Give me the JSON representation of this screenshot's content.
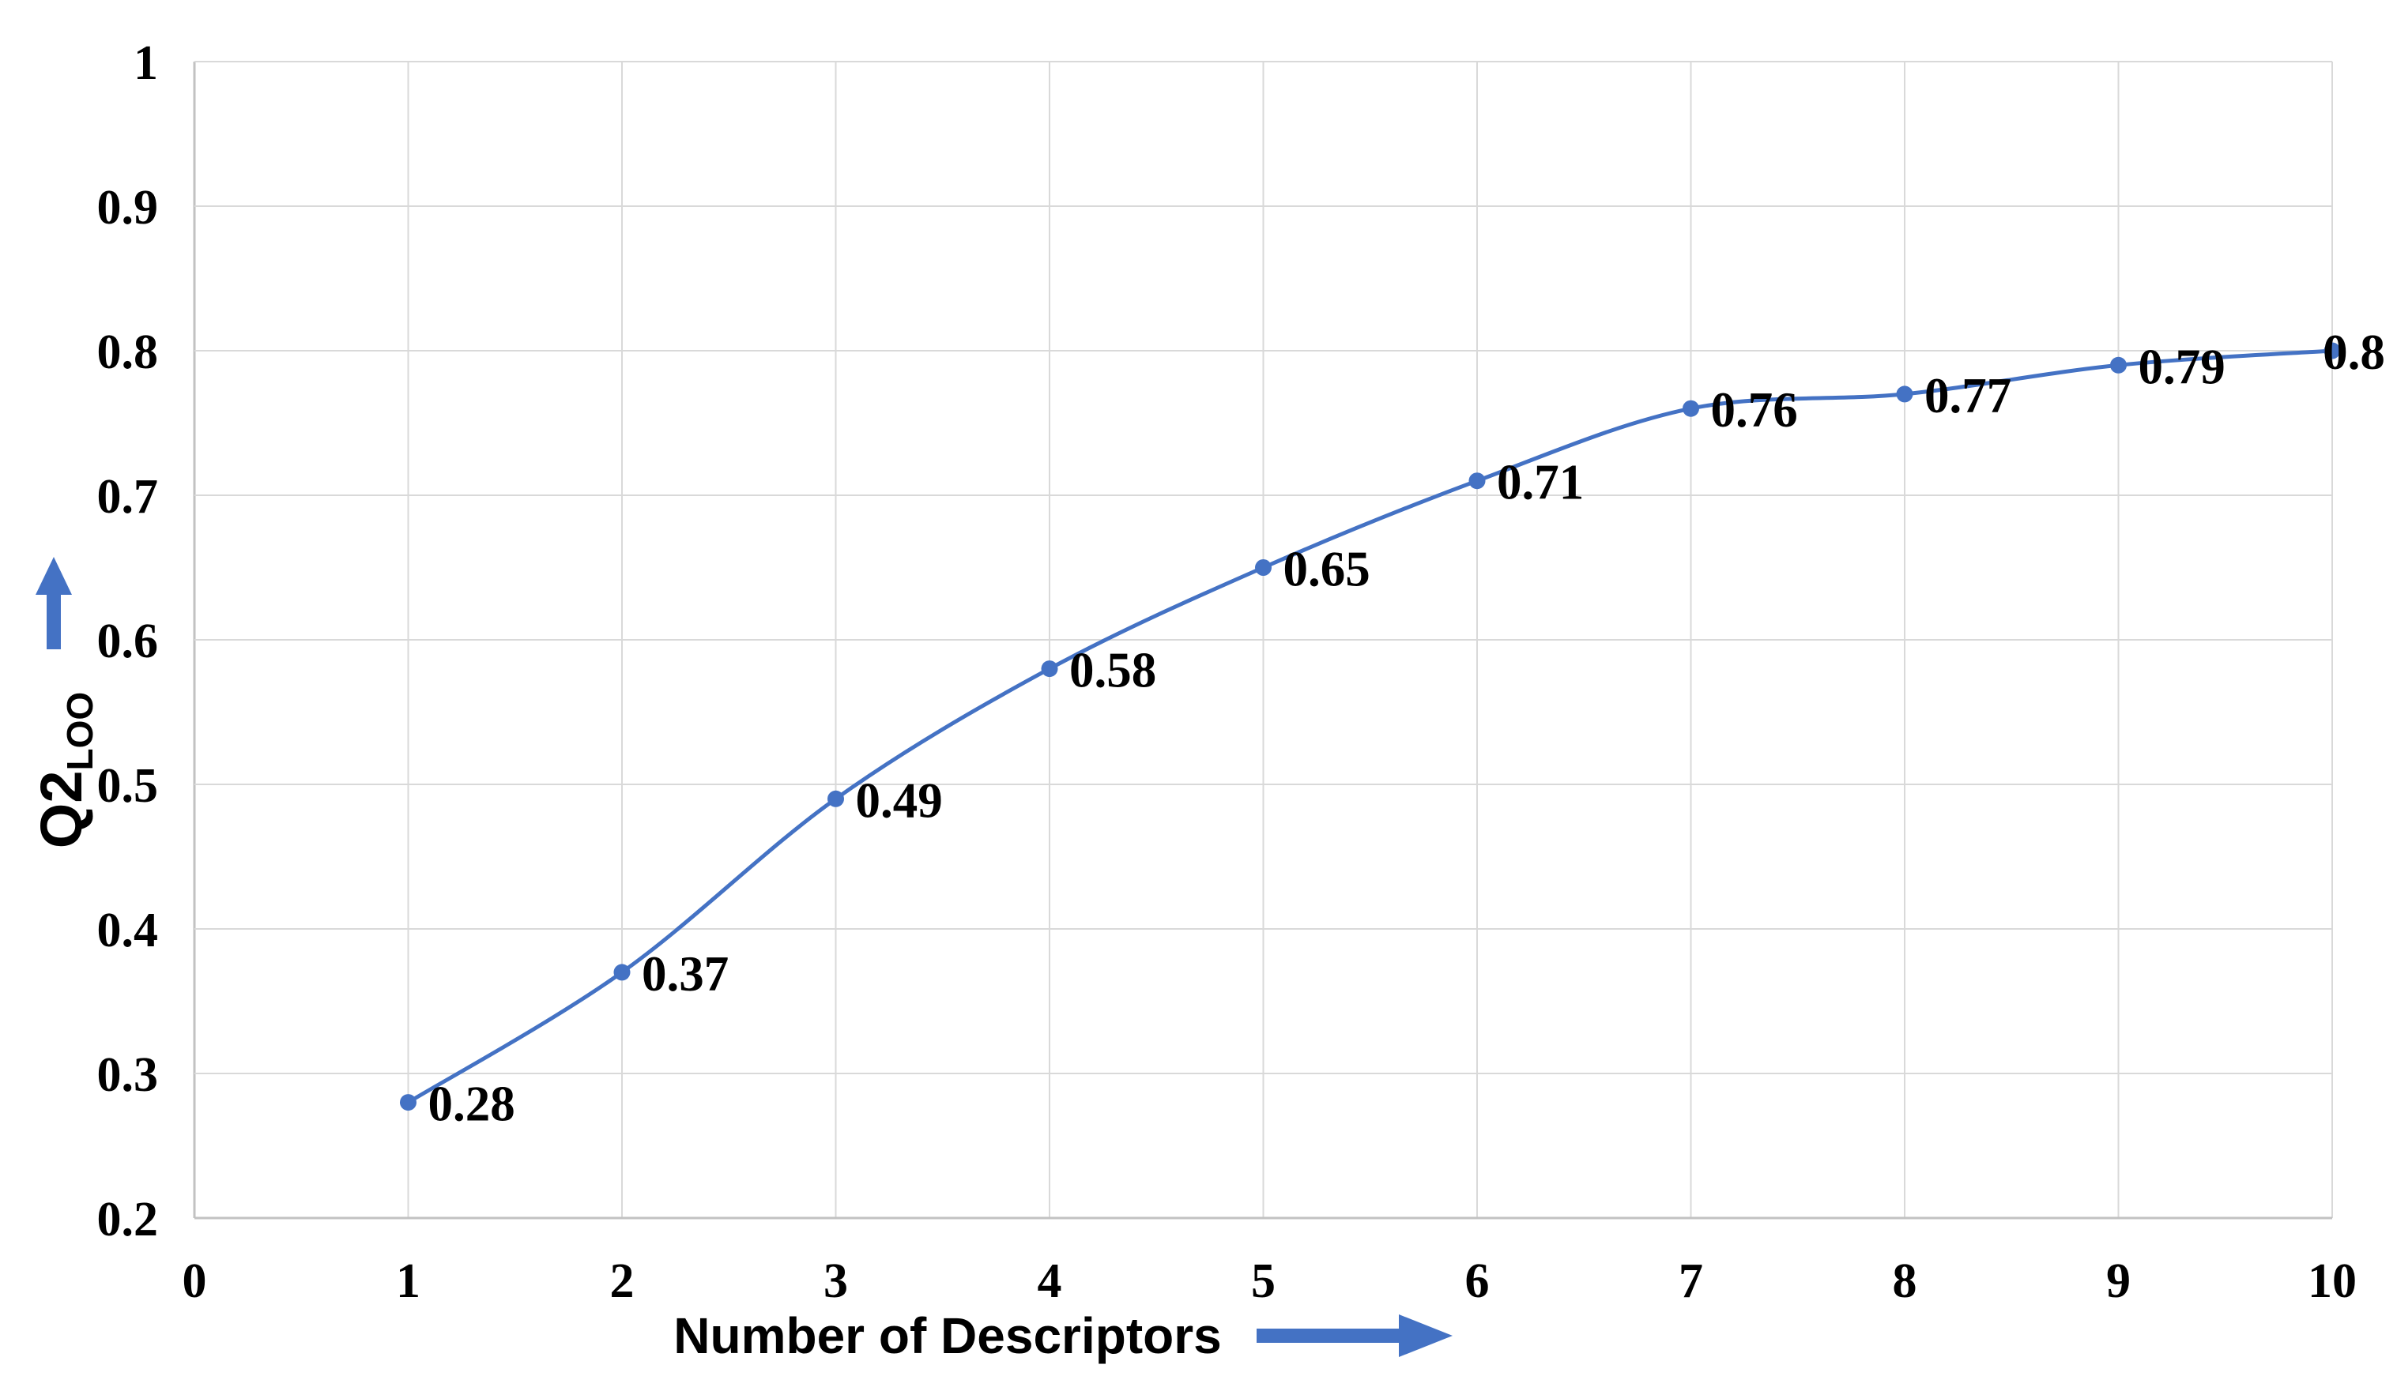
{
  "page": {
    "background": "#ffffff"
  },
  "chart_data": {
    "type": "line",
    "title": "",
    "x": [
      1,
      2,
      3,
      4,
      5,
      6,
      7,
      8,
      9,
      10
    ],
    "series": [
      {
        "name": "Q2LOO",
        "values": [
          0.28,
          0.37,
          0.49,
          0.58,
          0.65,
          0.71,
          0.76,
          0.77,
          0.79,
          0.8
        ],
        "point_labels": [
          "0.28",
          "0.37",
          "0.49",
          "0.58",
          "0.65",
          "0.71",
          "0.76",
          "0.77",
          "0.79",
          "0.8"
        ]
      }
    ],
    "xlabel": "Number of Descriptors",
    "ylabel": {
      "base": "Q2",
      "sub": "LOO"
    },
    "xlim": [
      0,
      10
    ],
    "ylim": [
      0.2,
      1.0
    ],
    "x_ticks": {
      "values": [
        0,
        1,
        2,
        3,
        4,
        5,
        6,
        7,
        8,
        9,
        10
      ],
      "labels": [
        "0",
        "1",
        "2",
        "3",
        "4",
        "5",
        "6",
        "7",
        "8",
        "9",
        "10"
      ]
    },
    "y_ticks": {
      "values": [
        0.2,
        0.3,
        0.4,
        0.5,
        0.6,
        0.7,
        0.8,
        0.9,
        1.0
      ],
      "labels": [
        "0.2",
        "0.3",
        "0.4",
        "0.5",
        "0.6",
        "0.7",
        "0.8",
        "0.9",
        "1"
      ]
    },
    "grid": true,
    "legend": "none",
    "smoothed_line": true,
    "marker": "circle",
    "colors": {
      "line": "#4472C4",
      "marker": "#4472C4",
      "arrow": "#4472C4",
      "grid": "#D9D9D9",
      "axis_line": "#C2C2C2",
      "text": "#000000"
    }
  }
}
